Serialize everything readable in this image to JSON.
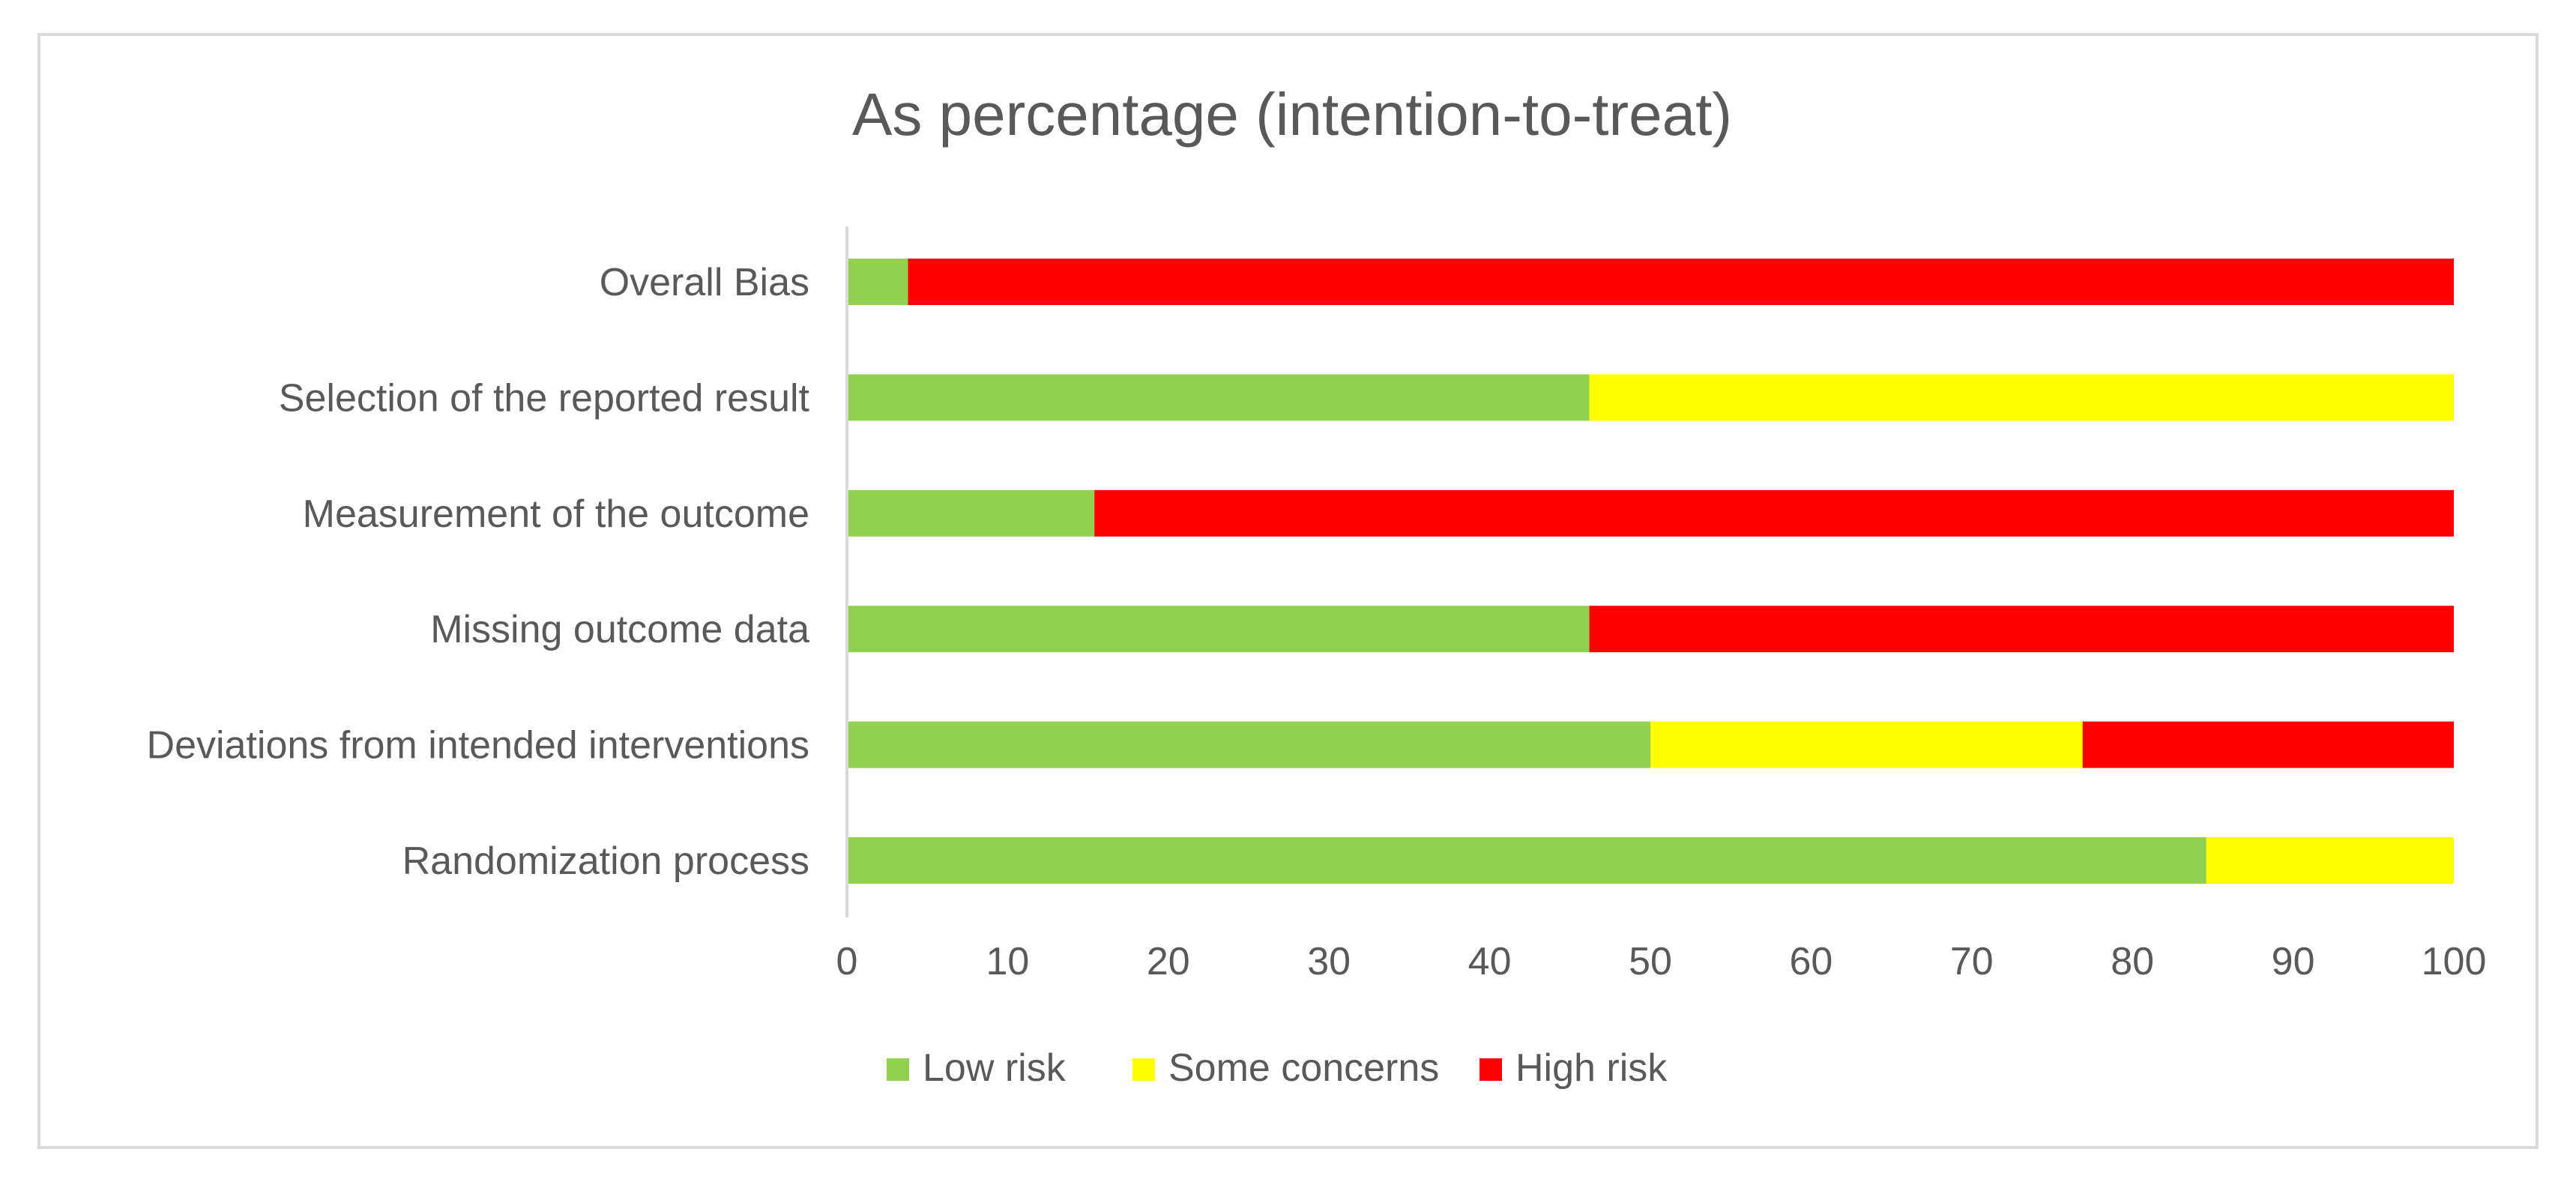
{
  "chart_data": {
    "type": "bar",
    "orientation": "horizontal",
    "stacked": true,
    "title": "As percentage (intention-to-treat)",
    "xlabel": "",
    "ylabel": "",
    "xlim": [
      0,
      100
    ],
    "x_ticks": [
      0,
      10,
      20,
      30,
      40,
      50,
      60,
      70,
      80,
      90,
      100
    ],
    "grid": false,
    "legend_position": "bottom",
    "categories": [
      "Overall Bias",
      "Selection of the reported result",
      "Measurement of the outcome",
      "Missing outcome data",
      "Deviations from intended interventions",
      "Randomization process"
    ],
    "series": [
      {
        "name": "Low risk",
        "color": "#92d050",
        "values": [
          3.8,
          46.2,
          15.4,
          46.2,
          50.0,
          84.6
        ]
      },
      {
        "name": "Some concerns",
        "color": "#ffff00",
        "values": [
          0,
          53.8,
          0,
          0,
          26.9,
          15.4
        ]
      },
      {
        "name": "High risk",
        "color": "#ff0000",
        "values": [
          96.2,
          0,
          84.6,
          53.8,
          23.1,
          0
        ]
      }
    ]
  }
}
